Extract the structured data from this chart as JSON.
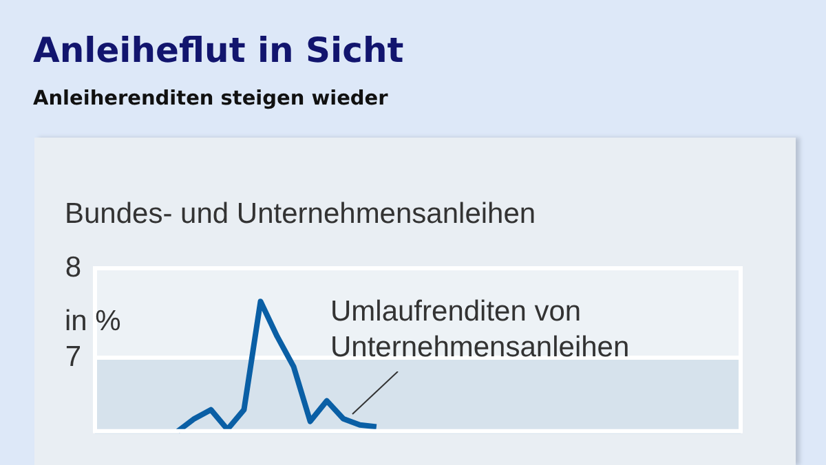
{
  "chart_data": {
    "type": "line",
    "title": "Anleiheflut in Sicht",
    "subtitle": "Anleiherenditen steigen wieder",
    "ylabel": "in %",
    "annotations": [
      "Bundes- und Unternehmensanleihen",
      "Umlaufrenditen von Unternehmensanleihen"
    ],
    "categories": [
      null,
      null,
      null,
      null,
      null,
      null,
      null,
      null,
      null,
      null,
      null,
      null,
      null,
      null,
      null,
      null,
      null,
      null,
      null,
      null,
      null,
      null,
      null,
      null,
      null,
      null,
      null,
      null,
      null,
      null,
      null,
      null,
      null,
      null,
      null,
      null,
      null,
      null,
      null,
      null
    ],
    "series": [
      {
        "color": "#0a5fa5",
        "values": [
          null,
          null,
          null,
          null,
          null,
          6.18,
          6.32,
          6.42,
          6.2,
          6.42,
          7.63,
          7.24,
          6.9,
          6.29,
          6.52,
          6.32,
          6.25,
          6.23,
          null,
          null,
          null,
          null,
          null,
          null,
          null,
          null,
          null,
          null,
          null,
          null,
          null,
          null,
          null,
          null,
          null,
          null,
          null,
          null,
          null,
          null
        ]
      }
    ],
    "ylim": [
      6.15,
      8
    ],
    "yticks": [
      7,
      8
    ],
    "bands": [
      {
        "axis": "y",
        "from": 6.15,
        "to": 7,
        "color": "#d6e2ec"
      }
    ],
    "grid": "y",
    "legend": false,
    "marker": "none",
    "line_style": "solid"
  }
}
